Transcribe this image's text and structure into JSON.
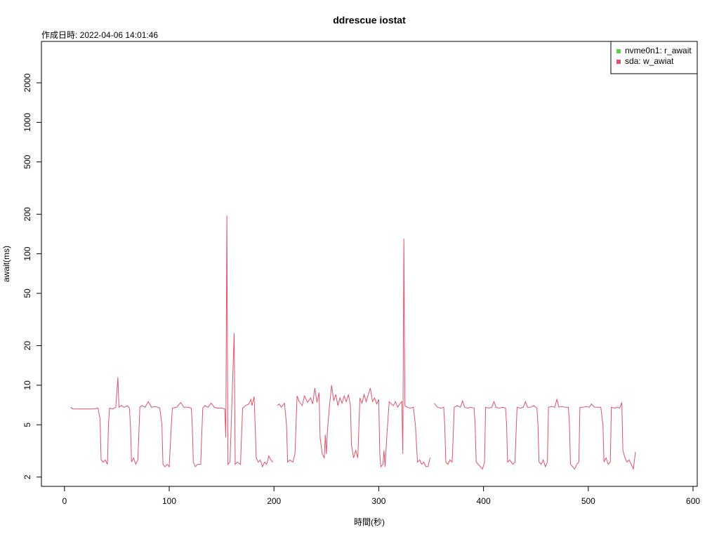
{
  "chart_data": {
    "type": "line",
    "title": "ddrescue iostat",
    "subtitle": "作成日時: 2022-04-06 14:01:46",
    "x_label": "時間(秒)",
    "y_label": "await(ms)",
    "log_y": true,
    "legend": "topright",
    "xlim": [
      -22,
      604
    ],
    "xticks": [
      0,
      100,
      200,
      300,
      400,
      500,
      600
    ],
    "ylim": [
      1.7,
      4130
    ],
    "yticks": [
      2,
      5,
      10,
      20,
      50,
      100,
      200,
      500,
      1000,
      2000
    ],
    "series": [
      {
        "name": "nvme0n1: r_await",
        "color": "#61D04F",
        "x": [],
        "values": []
      },
      {
        "name": "sda: w_awiat",
        "color": "#DF536B",
        "x": [
          6,
          8,
          12,
          16,
          20,
          24,
          28,
          32,
          34,
          35,
          37,
          39,
          41,
          42,
          43,
          46,
          49,
          51,
          52,
          54,
          57,
          60,
          62,
          63,
          64,
          66,
          68,
          70,
          72,
          74,
          77,
          80,
          83,
          87,
          91,
          93,
          94,
          96,
          98,
          100,
          102,
          103,
          107,
          111,
          114,
          118,
          121,
          122,
          123,
          125,
          127,
          130,
          132,
          134,
          137,
          140,
          143,
          146,
          150,
          153,
          154,
          155,
          156,
          158,
          162,
          163,
          165,
          168,
          170,
          173,
          176,
          178,
          179,
          181,
          182,
          183,
          185,
          187,
          189,
          191,
          193,
          195,
          197,
          199,
          200,
          203,
          205,
          207,
          210,
          212,
          213,
          215,
          218,
          220,
          222,
          224,
          227,
          229,
          232,
          235,
          237,
          239,
          241,
          243,
          244,
          246,
          248,
          249,
          250,
          251,
          253,
          255,
          257,
          259,
          261,
          263,
          265,
          267,
          269,
          271,
          273,
          274,
          276,
          278,
          280,
          282,
          284,
          286,
          288,
          290,
          292,
          294,
          296,
          298,
          300,
          301,
          302,
          304,
          305,
          306,
          308,
          310,
          312,
          314,
          316,
          318,
          320,
          322,
          323,
          324,
          325,
          327,
          330,
          333,
          335,
          337,
          339,
          341,
          343,
          345,
          347,
          349,
          350,
          353,
          356,
          359,
          362,
          363,
          364,
          366,
          368,
          370,
          371,
          372,
          375,
          378,
          380,
          382,
          385,
          388,
          391,
          392,
          393,
          395,
          397,
          399,
          401,
          402,
          405,
          408,
          410,
          412,
          415,
          418,
          421,
          422,
          423,
          425,
          428,
          430,
          432,
          435,
          438,
          440,
          442,
          445,
          448,
          451,
          452,
          453,
          455,
          457,
          459,
          461,
          462,
          465,
          468,
          470,
          472,
          475,
          478,
          481,
          482,
          483,
          485,
          487,
          489,
          491,
          492,
          495,
          498,
          501,
          503,
          506,
          509,
          512,
          514,
          515,
          517,
          519,
          521,
          522,
          525,
          528,
          530,
          532,
          533,
          535,
          537,
          539,
          541,
          543,
          545
        ],
        "values": [
          6.8,
          6.6,
          6.6,
          6.6,
          6.6,
          6.6,
          6.6,
          6.7,
          5.5,
          2.7,
          2.6,
          2.7,
          2.5,
          5,
          6.7,
          6.6,
          6.8,
          11.5,
          6.8,
          7,
          6.8,
          7,
          6.7,
          5,
          2.6,
          2.8,
          2.5,
          2.7,
          6.8,
          7,
          6.8,
          7.5,
          6.8,
          6.9,
          6.7,
          5,
          2.5,
          2.4,
          2.5,
          2.4,
          5,
          6.7,
          6.8,
          7.4,
          6.8,
          6.8,
          6.7,
          5,
          2.6,
          2.4,
          2.5,
          2.5,
          6.7,
          7,
          6.8,
          7.3,
          6.8,
          6.7,
          6.7,
          6.6,
          4,
          195,
          2.5,
          2.6,
          25,
          2.5,
          2.6,
          2.5,
          6.7,
          7,
          7.2,
          7.8,
          7,
          8.2,
          5,
          2.8,
          2.6,
          2.7,
          2.4,
          2.6,
          2.5,
          2.9,
          2.7,
          2.6,
          null,
          7,
          7.2,
          6.8,
          7.3,
          5,
          2.6,
          2.7,
          2.6,
          3,
          8.3,
          7.5,
          7,
          8.3,
          7.4,
          8,
          7.2,
          9.5,
          7.4,
          8.8,
          4,
          3,
          2.8,
          4.2,
          3,
          4.5,
          7,
          10,
          7.6,
          8.5,
          7,
          8,
          7.3,
          8.3,
          7.5,
          8.5,
          7,
          3.5,
          2.8,
          3.2,
          2.8,
          8,
          7.3,
          8.5,
          7.5,
          8.5,
          9.5,
          7.5,
          8,
          7.2,
          7.8,
          3,
          2.4,
          2.5,
          3.2,
          2.4,
          4.5,
          7.5,
          7.2,
          7,
          7.5,
          6.8,
          7.2,
          7.5,
          3,
          130,
          7,
          6.8,
          6.7,
          6.8,
          5,
          2.6,
          2.7,
          2.5,
          2.6,
          2.4,
          2.4,
          2.8,
          null,
          7.3,
          6.8,
          6.7,
          6.8,
          5,
          2.6,
          2.5,
          2.7,
          2.6,
          4,
          6.8,
          7,
          6.8,
          7.6,
          6.8,
          6.7,
          6.8,
          6.7,
          5,
          2.6,
          2.5,
          2.4,
          2.3,
          2.6,
          6.8,
          6.7,
          6.8,
          7.5,
          6.8,
          6.7,
          6.8,
          6.7,
          5,
          2.6,
          2.7,
          2.5,
          2.6,
          6.8,
          6.7,
          6.8,
          7.5,
          6.8,
          6.8,
          7,
          6.7,
          5,
          2.6,
          2.5,
          2.7,
          2.4,
          2.6,
          6.8,
          6.9,
          6.8,
          7.8,
          6.8,
          6.9,
          6.8,
          6.8,
          5,
          2.5,
          2.4,
          2.3,
          2.5,
          2.6,
          6.8,
          6.8,
          6.9,
          6.8,
          7.2,
          6.8,
          6.8,
          6.8,
          5,
          2.6,
          2.8,
          2.5,
          2.6,
          6.8,
          6.7,
          6.8,
          6.7,
          7.4,
          3.2,
          2.8,
          2.6,
          2.7,
          2.5,
          2.3,
          3.1
        ]
      }
    ]
  }
}
